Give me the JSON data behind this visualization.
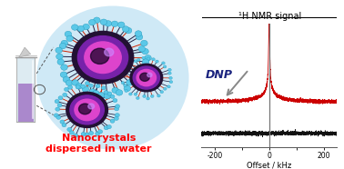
{
  "background_color": "#ffffff",
  "red_spectrum_color": "#cc0000",
  "black_spectrum_color": "#111111",
  "dnp_text_color": "#1a237e",
  "nanocrystal_text_color": "#ff0000",
  "title_text": "¹H NMR signal",
  "xlabel_text": "Offset / kHz",
  "dnp_label": "DNP",
  "nano_label": "Nanocrystals\ndispersed in water",
  "xmin": -250,
  "xmax": 250,
  "water_ellipse_color": "#a8d8f0",
  "water_ellipse_alpha": 0.55,
  "spike_tip_color": "#5bc8e8",
  "spike_line_color": "#cc2200",
  "spike_dark_line_color": "#222244",
  "crystal_core_outer": "#8833bb",
  "crystal_core_inner": "#bb44cc",
  "crystal_dark": "#220044"
}
